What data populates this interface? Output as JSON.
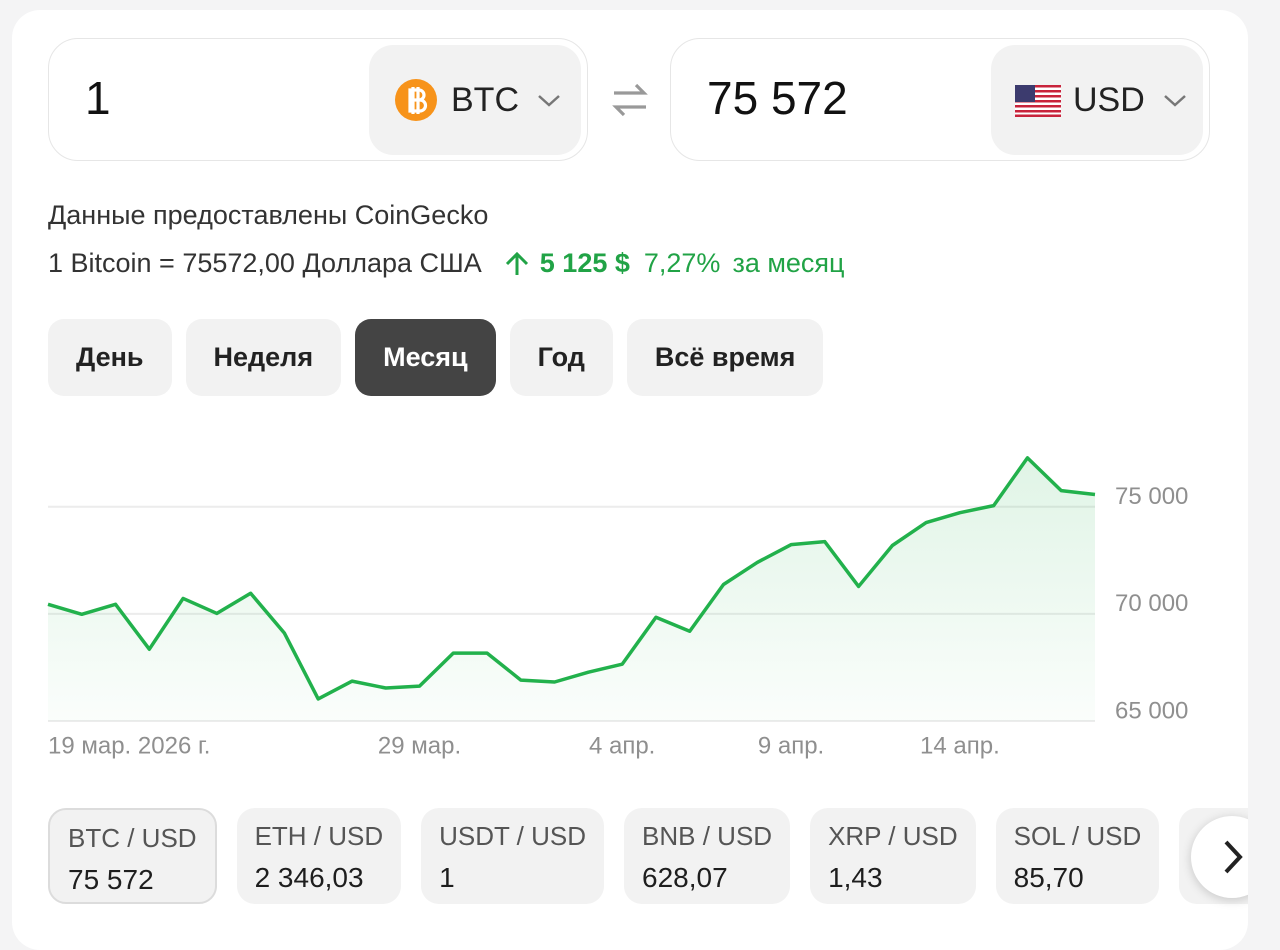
{
  "converter": {
    "from": {
      "amount": "1",
      "currency": "BTC"
    },
    "to": {
      "amount": "75 572",
      "currency": "USD"
    }
  },
  "source": "Данные предоставлены CoinGecko",
  "rate": {
    "text": "1 Bitcoin = 75572,00 Доллара США",
    "change": "5 125 $",
    "percent": "7,27%",
    "period": "за месяц"
  },
  "periods": {
    "items": [
      "День",
      "Неделя",
      "Месяц",
      "Год",
      "Всё время"
    ],
    "active": 2
  },
  "chart_data": {
    "type": "line",
    "categories": [
      "19 мар. 2026 г.",
      null,
      null,
      null,
      null,
      null,
      null,
      null,
      null,
      null,
      null,
      "29 мар.",
      null,
      null,
      null,
      null,
      null,
      "4 апр.",
      null,
      null,
      null,
      null,
      "9 апр.",
      null,
      null,
      null,
      null,
      "14 апр.",
      null,
      null,
      null,
      null
    ],
    "series": [
      {
        "color": "#22b14c",
        "values": [
          70445,
          69980,
          70445,
          68350,
          70720,
          70020,
          70960,
          69100,
          66030,
          66860,
          66540,
          66630,
          68170,
          68170,
          66910,
          66820,
          67280,
          67650,
          69840,
          69190,
          71370,
          72400,
          73230,
          73370,
          71280,
          73190,
          74260,
          74720,
          75050,
          77280,
          75750,
          75572
        ]
      }
    ],
    "ylim": [
      65000,
      79000
    ],
    "yticks": [
      {
        "value": 65000,
        "label": "65 000"
      },
      {
        "value": 70000,
        "label": "70 000"
      },
      {
        "value": 75000,
        "label": "75 000"
      }
    ],
    "grid": true
  },
  "pairs": [
    {
      "name": "BTC / USD",
      "value": "75 572"
    },
    {
      "name": "ETH / USD",
      "value": "2 346,03"
    },
    {
      "name": "USDT / USD",
      "value": "1"
    },
    {
      "name": "BNB / USD",
      "value": "628,07"
    },
    {
      "name": "XRP / USD",
      "value": "1,43"
    },
    {
      "name": "SOL / USD",
      "value": "85,70"
    }
  ]
}
